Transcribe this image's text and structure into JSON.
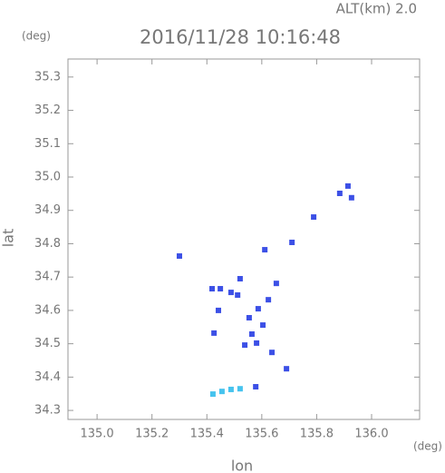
{
  "chart_data": {
    "type": "scatter",
    "title": "2016/11/28 10:16:48",
    "annotation": "ALT(km) 2.0",
    "x_label": "lon",
    "y_label": "lat",
    "x_unit": "(deg)",
    "y_unit": "(deg)",
    "xlim": [
      134.894,
      136.175
    ],
    "ylim": [
      34.273,
      35.354
    ],
    "xticks": [
      {
        "value": 135,
        "label": "135.0"
      },
      135.2,
      135.4,
      135.6,
      135.8,
      {
        "value": 136,
        "label": "136.0"
      }
    ],
    "yticks": [
      34.3,
      34.4,
      34.5,
      34.6,
      34.7,
      34.8,
      34.9,
      {
        "value": 35,
        "label": "35.0"
      },
      35.1,
      35.2,
      35.3
    ],
    "series": [
      {
        "color": "#3c50e6",
        "x": [
          135.914,
          135.927,
          135.884,
          135.789,
          135.71,
          135.611,
          135.3,
          135.521,
          135.419,
          135.449,
          135.488,
          135.512,
          135.653,
          135.624,
          135.587,
          135.554,
          135.604,
          135.564,
          135.581,
          135.538,
          135.637,
          135.426,
          135.442,
          135.69,
          135.578
        ],
        "values": [
          34.973,
          34.938,
          34.951,
          34.88,
          34.804,
          34.782,
          34.763,
          34.695,
          34.665,
          34.665,
          34.654,
          34.646,
          34.681,
          34.632,
          34.605,
          34.578,
          34.556,
          34.529,
          34.502,
          34.496,
          34.474,
          34.532,
          34.6,
          34.425,
          34.371
        ]
      },
      {
        "color": "#46c3ee",
        "x": [
          135.422,
          135.455,
          135.488,
          135.521
        ],
        "values": [
          34.349,
          34.357,
          34.363,
          34.365
        ]
      }
    ]
  }
}
